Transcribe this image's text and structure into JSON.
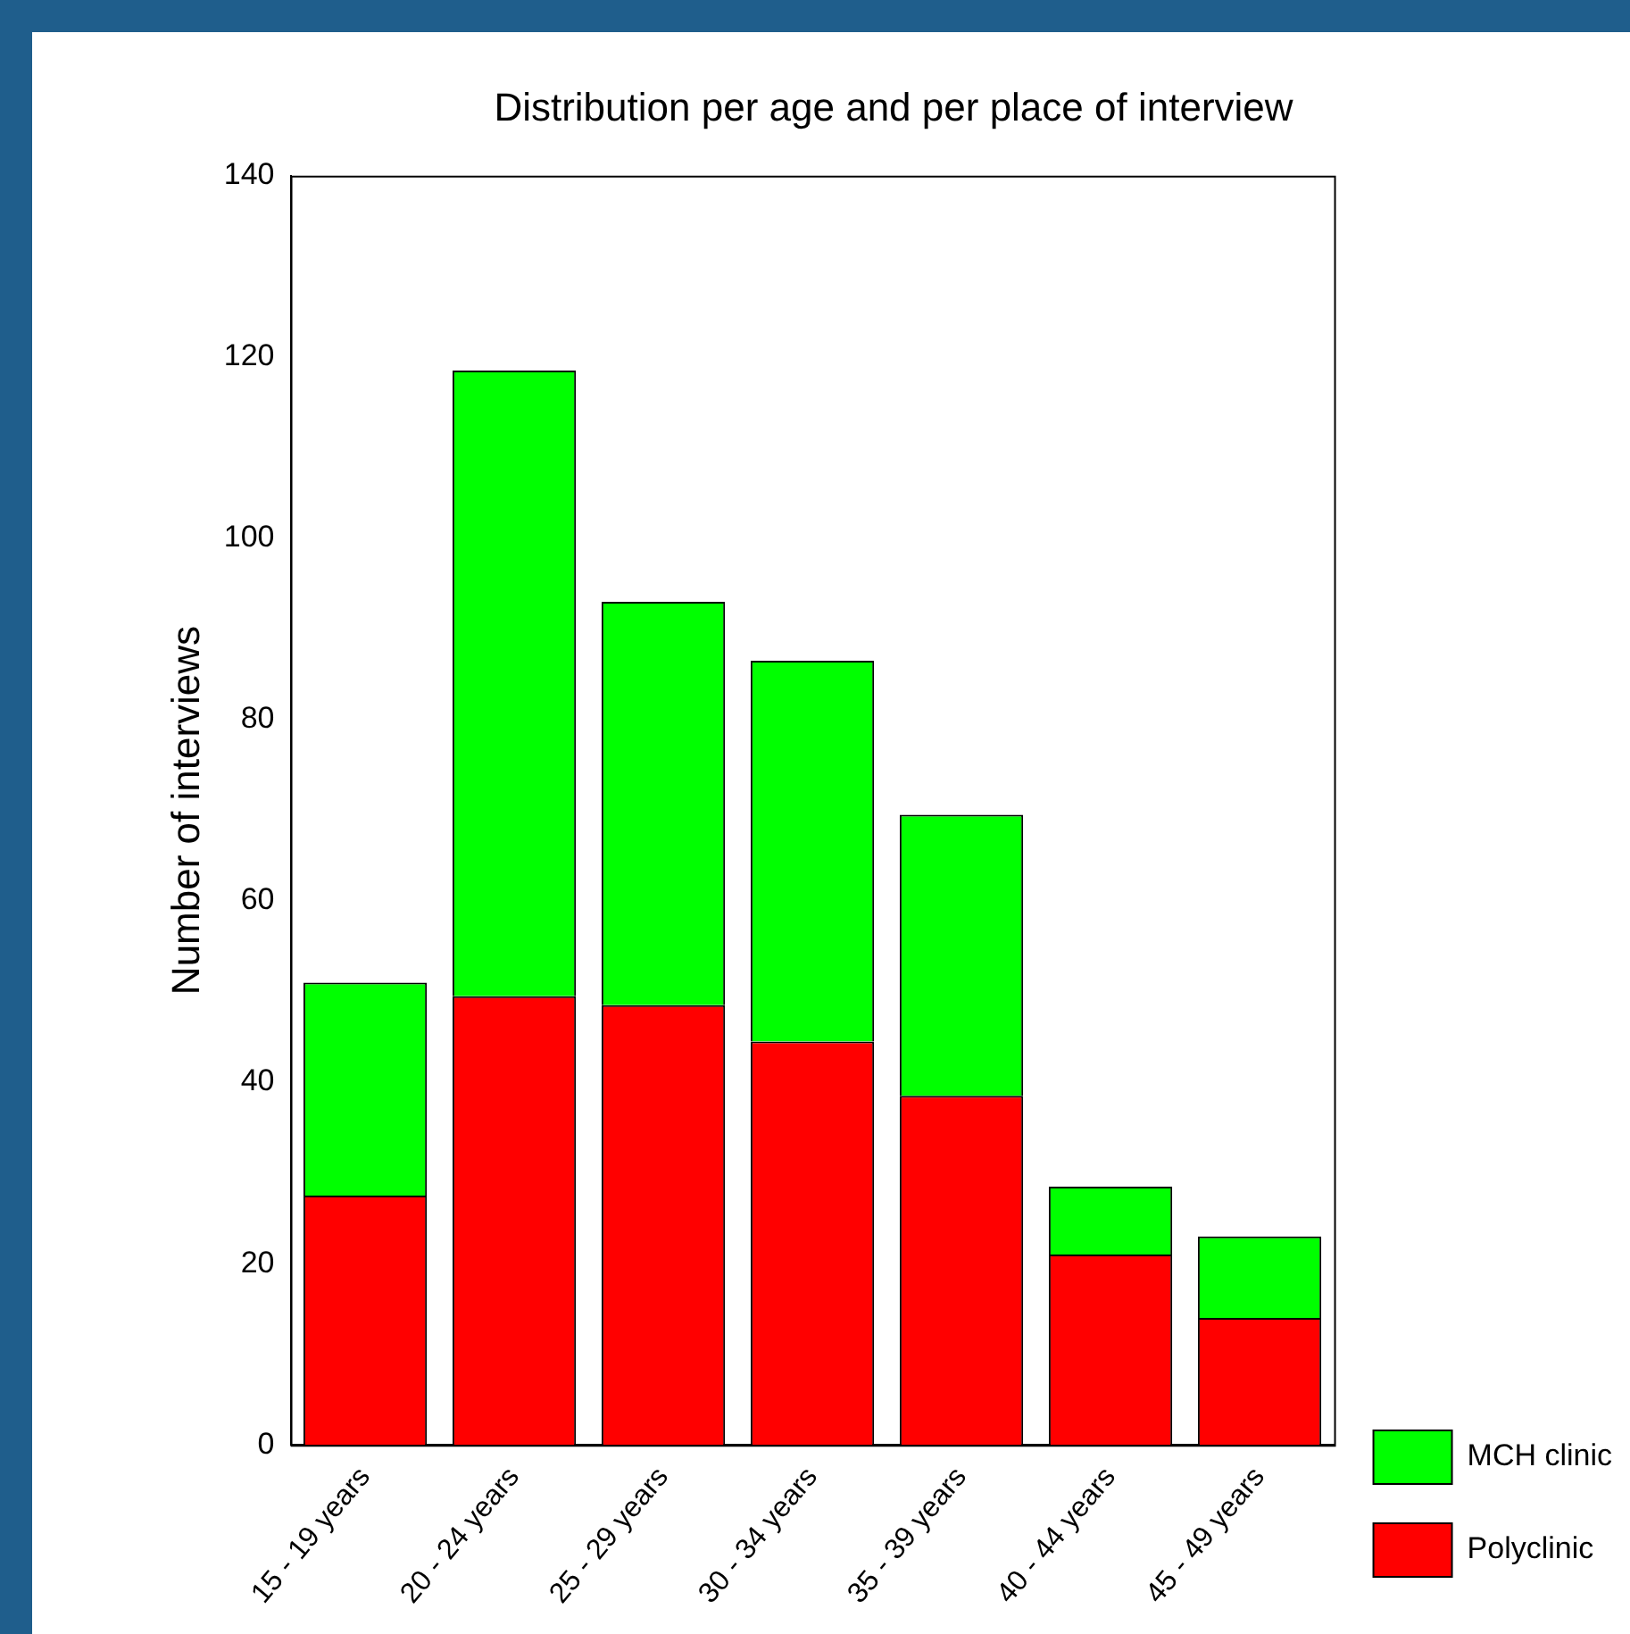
{
  "chart_data": {
    "type": "bar",
    "title": "Distribution per age and per place of interview",
    "ylabel": "Number of interviews",
    "categories": [
      "15 - 19 years",
      "20 - 24 years",
      "25 - 29 years",
      "30 - 34 years",
      "35 - 39 years",
      "40 - 44 years",
      "45 - 49 years"
    ],
    "series": [
      {
        "name": "Polyclinic",
        "color": "#ff0000",
        "values": [
          27.5,
          49.5,
          48.5,
          44.5,
          38.5,
          21,
          14
        ]
      },
      {
        "name": "MCH clinic",
        "color": "#00ff00",
        "values": [
          23.5,
          69,
          44.5,
          42,
          31,
          7.5,
          9
        ]
      }
    ],
    "stacked": true,
    "ylim": [
      0,
      140
    ],
    "yticks": [
      0,
      20,
      40,
      60,
      80,
      100,
      120,
      140
    ],
    "grid": false,
    "legend": "right"
  }
}
